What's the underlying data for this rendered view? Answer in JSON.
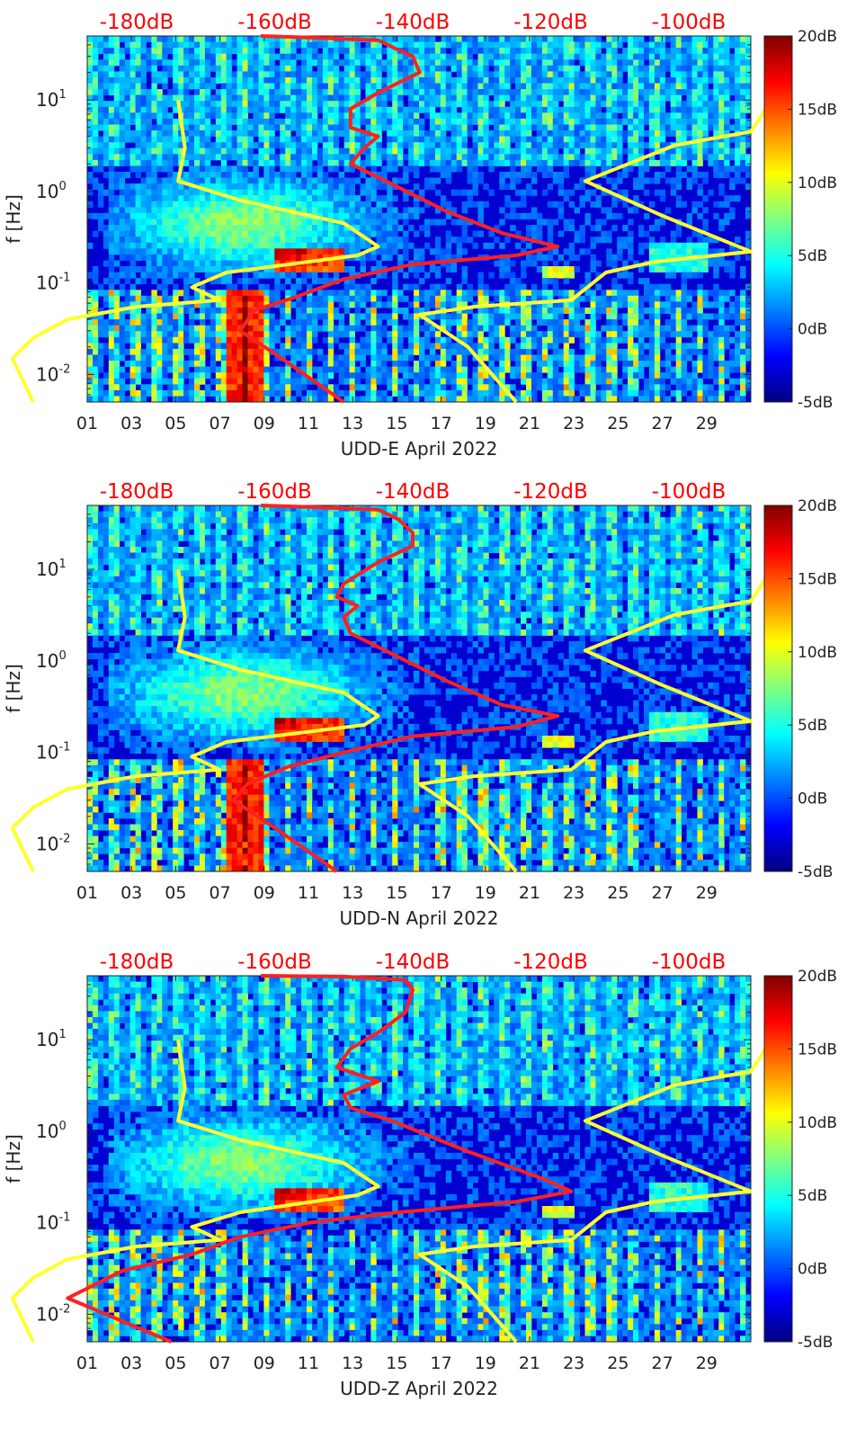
{
  "chart_data": [
    {
      "type": "heatmap",
      "title": "",
      "xlabel": "UDD-E April 2022",
      "ylabel": "f [Hz]",
      "x_unit": "day of April 2022",
      "xlim": [
        1,
        31
      ],
      "ylim": [
        0.005,
        50
      ],
      "y_scale": "log",
      "x_ticks": [
        "01",
        "03",
        "05",
        "07",
        "09",
        "11",
        "13",
        "15",
        "17",
        "19",
        "21",
        "23",
        "25",
        "27",
        "29"
      ],
      "y_ticks": [
        "10^-2",
        "10^-1",
        "10^0",
        "10^1"
      ],
      "top_axis": {
        "label": "",
        "ticks": [
          "-180dB",
          "-160dB",
          "-140dB",
          "-120dB",
          "-100dB"
        ],
        "color": "#ff0000"
      },
      "colorbar": {
        "range": [
          -5,
          20
        ],
        "ticks": [
          "-5dB",
          "0dB",
          "5dB",
          "10dB",
          "15dB",
          "20dB"
        ],
        "colormap": "jet"
      },
      "series": [
        {
          "color": "#ff2020",
          "note_axis": "top (dB)",
          "points": [
            [
              -162,
              50
            ],
            [
              -155,
              48
            ],
            [
              -145,
              45
            ],
            [
              -142,
              35
            ],
            [
              -140,
              30
            ],
            [
              -139,
              20
            ],
            [
              -145,
              12
            ],
            [
              -149,
              8
            ],
            [
              -149,
              5
            ],
            [
              -145,
              4
            ],
            [
              -147,
              3
            ],
            [
              -149,
              2
            ],
            [
              -143,
              1.2
            ],
            [
              -135,
              0.6
            ],
            [
              -127,
              0.35
            ],
            [
              -119,
              0.25
            ],
            [
              -125,
              0.2
            ],
            [
              -140,
              0.16
            ],
            [
              -150,
              0.11
            ],
            [
              -157,
              0.07
            ],
            [
              -163,
              0.05
            ],
            [
              -165,
              0.03
            ],
            [
              -159,
              0.015
            ],
            [
              -150,
              0.005
            ]
          ]
        },
        {
          "color": "#ffff30",
          "note_axis": "top (dB)",
          "points": [
            [
              -174,
              10
            ],
            [
              -173,
              3
            ],
            [
              -174,
              1.3
            ],
            [
              -165,
              0.8
            ],
            [
              -150,
              0.45
            ],
            [
              -145,
              0.25
            ],
            [
              -148,
              0.2
            ],
            [
              -167,
              0.13
            ],
            [
              -172,
              0.09
            ],
            [
              -168,
              0.065
            ],
            [
              -180,
              0.055
            ],
            [
              -190,
              0.04
            ],
            [
              -195,
              0.025
            ],
            [
              -198,
              0.015
            ],
            [
              -195,
              0.005
            ]
          ]
        },
        {
          "color": "#ffff30",
          "note_axis": "top (dB)",
          "points": [
            [
              -88,
              10
            ],
            [
              -91,
              4.5
            ],
            [
              -102,
              3.2
            ],
            [
              -115,
              1.3
            ],
            [
              -104,
              0.55
            ],
            [
              -91,
              0.22
            ],
            [
              -105,
              0.17
            ],
            [
              -112,
              0.13
            ],
            [
              -117,
              0.065
            ],
            [
              -131,
              0.055
            ],
            [
              -139,
              0.045
            ],
            [
              -132,
              0.02
            ],
            [
              -125,
              0.005
            ]
          ]
        }
      ]
    },
    {
      "type": "heatmap",
      "title": "",
      "xlabel": "UDD-N April 2022",
      "ylabel": "f [Hz]",
      "x_unit": "day of April 2022",
      "xlim": [
        1,
        31
      ],
      "ylim": [
        0.005,
        50
      ],
      "y_scale": "log",
      "x_ticks": [
        "01",
        "03",
        "05",
        "07",
        "09",
        "11",
        "13",
        "15",
        "17",
        "19",
        "21",
        "23",
        "25",
        "27",
        "29"
      ],
      "y_ticks": [
        "10^-2",
        "10^-1",
        "10^0",
        "10^1"
      ],
      "top_axis": {
        "label": "",
        "ticks": [
          "-180dB",
          "-160dB",
          "-140dB",
          "-120dB",
          "-100dB"
        ],
        "color": "#ff0000"
      },
      "colorbar": {
        "range": [
          -5,
          20
        ],
        "ticks": [
          "-5dB",
          "0dB",
          "5dB",
          "10dB",
          "15dB",
          "20dB"
        ],
        "colormap": "jet"
      },
      "series": [
        {
          "color": "#ff2020",
          "note_axis": "top (dB)",
          "points": [
            [
              -162,
              50
            ],
            [
              -155,
              48
            ],
            [
              -145,
              45
            ],
            [
              -142,
              35
            ],
            [
              -140,
              25
            ],
            [
              -140,
              18
            ],
            [
              -145,
              12
            ],
            [
              -150,
              7
            ],
            [
              -151,
              5
            ],
            [
              -148,
              4
            ],
            [
              -150,
              3
            ],
            [
              -149,
              2
            ],
            [
              -144,
              1.3
            ],
            [
              -135,
              0.6
            ],
            [
              -127,
              0.33
            ],
            [
              -119,
              0.25
            ],
            [
              -125,
              0.19
            ],
            [
              -140,
              0.15
            ],
            [
              -150,
              0.1
            ],
            [
              -158,
              0.07
            ],
            [
              -164,
              0.045
            ],
            [
              -166,
              0.03
            ],
            [
              -160,
              0.015
            ],
            [
              -151,
              0.005
            ]
          ]
        },
        {
          "color": "#ffff30",
          "note_axis": "top (dB)",
          "points": [
            [
              -174,
              10
            ],
            [
              -173,
              3
            ],
            [
              -174,
              1.3
            ],
            [
              -165,
              0.8
            ],
            [
              -150,
              0.45
            ],
            [
              -145,
              0.25
            ],
            [
              -147,
              0.2
            ],
            [
              -167,
              0.13
            ],
            [
              -172,
              0.09
            ],
            [
              -168,
              0.065
            ],
            [
              -180,
              0.055
            ],
            [
              -190,
              0.04
            ],
            [
              -195,
              0.025
            ],
            [
              -198,
              0.015
            ],
            [
              -195,
              0.005
            ]
          ]
        },
        {
          "color": "#ffff30",
          "note_axis": "top (dB)",
          "points": [
            [
              -88,
              10
            ],
            [
              -91,
              4.5
            ],
            [
              -102,
              3.2
            ],
            [
              -115,
              1.3
            ],
            [
              -104,
              0.55
            ],
            [
              -91,
              0.22
            ],
            [
              -105,
              0.17
            ],
            [
              -112,
              0.13
            ],
            [
              -117,
              0.065
            ],
            [
              -131,
              0.055
            ],
            [
              -139,
              0.045
            ],
            [
              -132,
              0.02
            ],
            [
              -125,
              0.005
            ]
          ]
        }
      ]
    },
    {
      "type": "heatmap",
      "title": "",
      "xlabel": "UDD-Z April 2022",
      "ylabel": "f [Hz]",
      "x_unit": "day of April 2022",
      "xlim": [
        1,
        31
      ],
      "ylim": [
        0.005,
        50
      ],
      "y_scale": "log",
      "x_ticks": [
        "01",
        "03",
        "05",
        "07",
        "09",
        "11",
        "13",
        "15",
        "17",
        "19",
        "21",
        "23",
        "25",
        "27",
        "29"
      ],
      "y_ticks": [
        "10^-2",
        "10^-1",
        "10^0",
        "10^1"
      ],
      "top_axis": {
        "label": "",
        "ticks": [
          "-180dB",
          "-160dB",
          "-140dB",
          "-120dB",
          "-100dB"
        ],
        "color": "#ff0000"
      },
      "colorbar": {
        "range": [
          -5,
          20
        ],
        "ticks": [
          "-5dB",
          "0dB",
          "5dB",
          "10dB",
          "15dB",
          "20dB"
        ],
        "colormap": "jet"
      },
      "series": [
        {
          "color": "#ff2020",
          "note_axis": "top (dB)",
          "points": [
            [
              -162,
              50
            ],
            [
              -150,
              49
            ],
            [
              -141,
              45
            ],
            [
              -140,
              35
            ],
            [
              -141,
              20
            ],
            [
              -145,
              12
            ],
            [
              -149,
              8
            ],
            [
              -151,
              5
            ],
            [
              -145,
              3.5
            ],
            [
              -150,
              2.5
            ],
            [
              -149,
              1.8
            ],
            [
              -143,
              1.3
            ],
            [
              -132,
              0.6
            ],
            [
              -121,
              0.3
            ],
            [
              -117,
              0.22
            ],
            [
              -125,
              0.17
            ],
            [
              -142,
              0.13
            ],
            [
              -155,
              0.1
            ],
            [
              -165,
              0.07
            ],
            [
              -172,
              0.045
            ],
            [
              -182,
              0.03
            ],
            [
              -190,
              0.015
            ],
            [
              -175,
              0.005
            ]
          ]
        },
        {
          "color": "#ffff30",
          "note_axis": "top (dB)",
          "points": [
            [
              -174,
              10
            ],
            [
              -173,
              3
            ],
            [
              -174,
              1.3
            ],
            [
              -165,
              0.8
            ],
            [
              -150,
              0.45
            ],
            [
              -145,
              0.25
            ],
            [
              -148,
              0.2
            ],
            [
              -165,
              0.13
            ],
            [
              -172,
              0.09
            ],
            [
              -168,
              0.065
            ],
            [
              -180,
              0.055
            ],
            [
              -190,
              0.04
            ],
            [
              -195,
              0.025
            ],
            [
              -198,
              0.015
            ],
            [
              -195,
              0.005
            ]
          ]
        },
        {
          "color": "#ffff30",
          "note_axis": "top (dB)",
          "points": [
            [
              -88,
              10
            ],
            [
              -91,
              4.5
            ],
            [
              -102,
              3.2
            ],
            [
              -115,
              1.3
            ],
            [
              -104,
              0.55
            ],
            [
              -91,
              0.22
            ],
            [
              -105,
              0.17
            ],
            [
              -112,
              0.13
            ],
            [
              -117,
              0.065
            ],
            [
              -131,
              0.055
            ],
            [
              -139,
              0.045
            ],
            [
              -132,
              0.02
            ],
            [
              -125,
              0.005
            ]
          ]
        }
      ]
    }
  ]
}
